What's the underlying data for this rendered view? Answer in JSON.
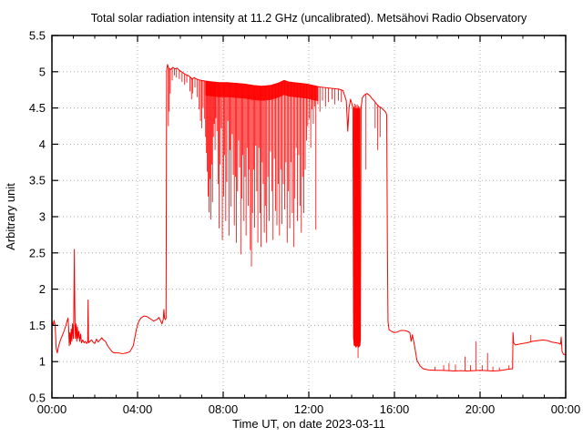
{
  "chart_data": {
    "type": "line",
    "title": "Total solar radiation intensity at 11.2 GHz (uncalibrated). Metsähovi Radio Observatory",
    "xlabel": "Time UT, on date 2023-03-11",
    "ylabel": "Arbitrary unit",
    "xlim_hours": [
      0,
      24
    ],
    "ylim": [
      0.5,
      5.5
    ],
    "grid": "dotted at every major tick",
    "legend": "none",
    "series_name": "total solar radiation intensity",
    "series_color": "#ff0000",
    "grid_color": "#a8a8a8",
    "frame_color": "#000000",
    "x_axis": {
      "label": "Time UT, on date 2023-03-11",
      "major_ticks": [
        {
          "t": 0,
          "label": "00:00"
        },
        {
          "t": 4,
          "label": "04:00"
        },
        {
          "t": 8,
          "label": "08:00"
        },
        {
          "t": 12,
          "label": "12:00"
        },
        {
          "t": 16,
          "label": "16:00"
        },
        {
          "t": 20,
          "label": "20:00"
        },
        {
          "t": 24,
          "label": "00:00"
        }
      ],
      "minor_step_hours": 1
    },
    "y_axis": {
      "label": "Arbitrary unit",
      "min": 0.5,
      "max": 5.5,
      "major_ticks": [
        {
          "v": 0.5,
          "label": "0.5"
        },
        {
          "v": 1.0,
          "label": "1"
        },
        {
          "v": 1.5,
          "label": "1.5"
        },
        {
          "v": 2.0,
          "label": "2"
        },
        {
          "v": 2.5,
          "label": "2.5"
        },
        {
          "v": 3.0,
          "label": "3"
        },
        {
          "v": 3.5,
          "label": "3.5"
        },
        {
          "v": 4.0,
          "label": "4"
        },
        {
          "v": 4.5,
          "label": "4.5"
        },
        {
          "v": 5.0,
          "label": "5"
        },
        {
          "v": 5.5,
          "label": "5.5"
        }
      ]
    },
    "baseline_points": [
      [
        0,
        1.56
      ],
      [
        0.06,
        1.5
      ],
      [
        0.1,
        1.57
      ],
      [
        0.15,
        1.5
      ],
      [
        0.2,
        1.18
      ],
      [
        0.25,
        1.12
      ],
      [
        0.3,
        1.2
      ],
      [
        0.4,
        1.3
      ],
      [
        0.5,
        1.37
      ],
      [
        0.6,
        1.45
      ],
      [
        0.7,
        1.55
      ],
      [
        0.75,
        1.6
      ],
      [
        0.78,
        1.48
      ],
      [
        0.81,
        1.22
      ],
      [
        0.84,
        1.4
      ],
      [
        0.87,
        1.24
      ],
      [
        0.9,
        1.45
      ],
      [
        0.93,
        1.28
      ],
      [
        0.96,
        1.52
      ],
      [
        1.0,
        1.32
      ],
      [
        1.02,
        1.6
      ],
      [
        1.04,
        2.2
      ],
      [
        1.05,
        2.55
      ],
      [
        1.06,
        2.1
      ],
      [
        1.08,
        1.5
      ],
      [
        1.1,
        1.32
      ],
      [
        1.13,
        1.52
      ],
      [
        1.16,
        1.28
      ],
      [
        1.19,
        1.48
      ],
      [
        1.22,
        1.32
      ],
      [
        1.26,
        1.42
      ],
      [
        1.3,
        1.28
      ],
      [
        1.34,
        1.38
      ],
      [
        1.38,
        1.26
      ],
      [
        1.44,
        1.3
      ],
      [
        1.5,
        1.26
      ],
      [
        1.56,
        1.28
      ],
      [
        1.62,
        1.25
      ],
      [
        1.67,
        1.27
      ],
      [
        1.69,
        1.85
      ],
      [
        1.71,
        1.26
      ],
      [
        1.78,
        1.28
      ],
      [
        1.85,
        1.3
      ],
      [
        1.92,
        1.27
      ],
      [
        2.0,
        1.25
      ],
      [
        2.08,
        1.31
      ],
      [
        2.16,
        1.27
      ],
      [
        2.25,
        1.3
      ],
      [
        2.33,
        1.33
      ],
      [
        2.4,
        1.3
      ],
      [
        2.5,
        1.28
      ],
      [
        2.6,
        1.22
      ],
      [
        2.7,
        1.18
      ],
      [
        2.8,
        1.14
      ],
      [
        2.9,
        1.12
      ],
      [
        3.1,
        1.12
      ],
      [
        3.3,
        1.11
      ],
      [
        3.5,
        1.12
      ],
      [
        3.65,
        1.14
      ],
      [
        3.8,
        1.22
      ],
      [
        3.95,
        1.45
      ],
      [
        4.05,
        1.55
      ],
      [
        4.15,
        1.6
      ],
      [
        4.3,
        1.63
      ],
      [
        4.45,
        1.62
      ],
      [
        4.6,
        1.59
      ],
      [
        4.75,
        1.56
      ],
      [
        4.9,
        1.58
      ],
      [
        5.0,
        1.61
      ],
      [
        5.08,
        1.56
      ],
      [
        5.14,
        1.52
      ],
      [
        5.2,
        1.58
      ],
      [
        5.23,
        1.72
      ],
      [
        5.26,
        1.6
      ],
      [
        5.3,
        1.58
      ],
      [
        5.33,
        1.6
      ],
      [
        5.36,
        5.02
      ],
      [
        5.4,
        5.1
      ],
      [
        5.45,
        5.05
      ],
      [
        5.55,
        5.03
      ],
      [
        5.65,
        5.06
      ],
      [
        5.75,
        5.04
      ],
      [
        5.85,
        5.05
      ],
      [
        5.95,
        5.02
      ],
      [
        6.05,
        5.0
      ],
      [
        6.15,
        4.98
      ],
      [
        6.25,
        4.96
      ],
      [
        6.35,
        4.95
      ],
      [
        6.45,
        4.93
      ],
      [
        6.55,
        4.9
      ],
      [
        6.65,
        4.92
      ],
      [
        6.75,
        4.9
      ],
      [
        6.85,
        4.89
      ],
      [
        7.0,
        4.88
      ],
      [
        7.2,
        4.87
      ],
      [
        7.5,
        4.86
      ],
      [
        7.8,
        4.85
      ],
      [
        8.2,
        4.85
      ],
      [
        8.6,
        4.84
      ],
      [
        9.0,
        4.83
      ],
      [
        9.4,
        4.81
      ],
      [
        9.8,
        4.8
      ],
      [
        10.2,
        4.81
      ],
      [
        10.55,
        4.84
      ],
      [
        10.85,
        4.88
      ],
      [
        11.05,
        4.86
      ],
      [
        11.3,
        4.85
      ],
      [
        11.6,
        4.84
      ],
      [
        11.9,
        4.83
      ],
      [
        12.2,
        4.81
      ],
      [
        12.5,
        4.79
      ],
      [
        12.8,
        4.78
      ],
      [
        13.1,
        4.77
      ],
      [
        13.4,
        4.76
      ],
      [
        13.6,
        4.74
      ],
      [
        13.75,
        4.6
      ],
      [
        13.82,
        4.18
      ],
      [
        13.88,
        4.5
      ],
      [
        13.95,
        4.62
      ],
      [
        14.02,
        4.55
      ],
      [
        14.06,
        4.5
      ],
      [
        14.09,
        1.32
      ],
      [
        14.14,
        1.24
      ],
      [
        14.2,
        1.2
      ],
      [
        14.26,
        1.23
      ],
      [
        14.32,
        1.2
      ],
      [
        14.38,
        1.22
      ],
      [
        14.41,
        1.3
      ],
      [
        14.44,
        4.5
      ],
      [
        14.5,
        4.64
      ],
      [
        14.6,
        4.68
      ],
      [
        14.72,
        4.7
      ],
      [
        14.85,
        4.67
      ],
      [
        14.95,
        4.63
      ],
      [
        15.05,
        4.6
      ],
      [
        15.15,
        4.56
      ],
      [
        15.28,
        4.52
      ],
      [
        15.4,
        4.5
      ],
      [
        15.5,
        4.47
      ],
      [
        15.6,
        4.44
      ],
      [
        15.64,
        4.4
      ],
      [
        15.67,
        2.6
      ],
      [
        15.7,
        1.55
      ],
      [
        15.75,
        1.44
      ],
      [
        15.85,
        1.42
      ],
      [
        16.0,
        1.4
      ],
      [
        16.15,
        1.41
      ],
      [
        16.3,
        1.43
      ],
      [
        16.45,
        1.43
      ],
      [
        16.6,
        1.42
      ],
      [
        16.72,
        1.4
      ],
      [
        16.78,
        1.28
      ],
      [
        16.84,
        1.37
      ],
      [
        16.95,
        1.2
      ],
      [
        17.05,
        1.02
      ],
      [
        17.2,
        0.94
      ],
      [
        17.35,
        0.9
      ],
      [
        17.6,
        0.885
      ],
      [
        17.9,
        0.88
      ],
      [
        18.2,
        0.88
      ],
      [
        18.5,
        0.875
      ],
      [
        18.8,
        0.87
      ],
      [
        19.1,
        0.875
      ],
      [
        19.4,
        0.87
      ],
      [
        19.7,
        0.875
      ],
      [
        20.0,
        0.88
      ],
      [
        20.3,
        0.875
      ],
      [
        20.6,
        0.87
      ],
      [
        20.9,
        0.875
      ],
      [
        21.2,
        0.89
      ],
      [
        21.45,
        0.9
      ],
      [
        21.52,
        0.9
      ],
      [
        21.54,
        1.4
      ],
      [
        21.57,
        1.26
      ],
      [
        21.65,
        1.23
      ],
      [
        21.8,
        1.24
      ],
      [
        22.0,
        1.25
      ],
      [
        22.2,
        1.26
      ],
      [
        22.45,
        1.28
      ],
      [
        22.7,
        1.29
      ],
      [
        22.95,
        1.3
      ],
      [
        23.15,
        1.29
      ],
      [
        23.35,
        1.27
      ],
      [
        23.55,
        1.26
      ],
      [
        23.7,
        1.25
      ],
      [
        23.76,
        1.24
      ],
      [
        23.79,
        1.34
      ],
      [
        23.83,
        1.14
      ],
      [
        23.9,
        1.1
      ],
      [
        24.0,
        1.1
      ]
    ],
    "down_spikes": [
      [
        5.44,
        4.25
      ],
      [
        5.48,
        4.45
      ],
      [
        5.53,
        4.7
      ],
      [
        5.62,
        4.88
      ],
      [
        5.72,
        4.95
      ],
      [
        5.82,
        4.92
      ],
      [
        5.95,
        4.9
      ],
      [
        6.08,
        4.86
      ],
      [
        6.2,
        4.82
      ],
      [
        6.3,
        4.85
      ],
      [
        6.45,
        4.73
      ],
      [
        6.52,
        4.62
      ],
      [
        6.58,
        4.7
      ],
      [
        6.68,
        4.78
      ],
      [
        6.78,
        4.65
      ],
      [
        6.88,
        4.48
      ],
      [
        6.94,
        4.32
      ],
      [
        7.0,
        4.22
      ],
      [
        7.06,
        4.5
      ],
      [
        7.12,
        4.35
      ],
      [
        7.18,
        4.1
      ],
      [
        7.22,
        3.88
      ],
      [
        7.26,
        3.62
      ],
      [
        7.3,
        3.28
      ],
      [
        7.34,
        3.06
      ],
      [
        7.38,
        3.52
      ],
      [
        7.42,
        2.96
      ],
      [
        7.46,
        3.72
      ],
      [
        7.5,
        3.2
      ],
      [
        7.54,
        4.1
      ],
      [
        7.58,
        4.28
      ],
      [
        7.62,
        3.92
      ],
      [
        7.66,
        4.36
      ],
      [
        7.71,
        4.18
      ],
      [
        7.76,
        3.45
      ],
      [
        7.81,
        2.84
      ],
      [
        7.86,
        3.72
      ],
      [
        7.91,
        4.22
      ],
      [
        7.96,
        2.68
      ],
      [
        8.02,
        3.28
      ],
      [
        8.07,
        3.85
      ],
      [
        8.12,
        2.94
      ],
      [
        8.17,
        3.48
      ],
      [
        8.22,
        4.32
      ],
      [
        8.27,
        2.74
      ],
      [
        8.32,
        3.92
      ],
      [
        8.37,
        3.14
      ],
      [
        8.42,
        4.14
      ],
      [
        8.47,
        3.58
      ],
      [
        8.52,
        2.88
      ],
      [
        8.57,
        3.55
      ],
      [
        8.62,
        2.64
      ],
      [
        8.67,
        3.35
      ],
      [
        8.72,
        4.05
      ],
      [
        8.77,
        3.68
      ],
      [
        8.82,
        2.48
      ],
      [
        8.87,
        3.25
      ],
      [
        8.92,
        3.85
      ],
      [
        8.97,
        2.94
      ],
      [
        9.02,
        3.55
      ],
      [
        9.07,
        2.74
      ],
      [
        9.12,
        3.95
      ],
      [
        9.17,
        3.15
      ],
      [
        9.22,
        3.65
      ],
      [
        9.27,
        2.54
      ],
      [
        9.32,
        2.31
      ],
      [
        9.37,
        3.05
      ],
      [
        9.42,
        3.65
      ],
      [
        9.47,
        2.85
      ],
      [
        9.52,
        3.98
      ],
      [
        9.57,
        3.35
      ],
      [
        9.62,
        2.64
      ],
      [
        9.67,
        3.95
      ],
      [
        9.72,
        3.05
      ],
      [
        9.77,
        2.58
      ],
      [
        9.82,
        3.75
      ],
      [
        9.87,
        3.45
      ],
      [
        9.92,
        2.78
      ],
      [
        9.97,
        3.15
      ],
      [
        10.03,
        2.64
      ],
      [
        10.09,
        3.55
      ],
      [
        10.15,
        2.94
      ],
      [
        10.21,
        3.9
      ],
      [
        10.27,
        3.35
      ],
      [
        10.33,
        2.68
      ],
      [
        10.39,
        3.8
      ],
      [
        10.45,
        3.08
      ],
      [
        10.51,
        2.88
      ],
      [
        10.57,
        3.45
      ],
      [
        10.63,
        2.74
      ],
      [
        10.69,
        3.65
      ],
      [
        10.75,
        2.9
      ],
      [
        10.81,
        3.45
      ],
      [
        10.87,
        3.1
      ],
      [
        10.93,
        3.75
      ],
      [
        10.99,
        2.64
      ],
      [
        11.05,
        3.35
      ],
      [
        11.11,
        2.84
      ],
      [
        11.17,
        3.75
      ],
      [
        11.23,
        3.05
      ],
      [
        11.29,
        2.58
      ],
      [
        11.35,
        3.25
      ],
      [
        11.41,
        3.95
      ],
      [
        11.47,
        2.94
      ],
      [
        11.53,
        3.85
      ],
      [
        11.59,
        3.15
      ],
      [
        11.65,
        2.78
      ],
      [
        11.71,
        3.55
      ],
      [
        11.77,
        3.05
      ],
      [
        11.83,
        3.65
      ],
      [
        11.89,
        4.05
      ],
      [
        11.95,
        4.25
      ],
      [
        12.03,
        4.35
      ],
      [
        12.09,
        3.95
      ],
      [
        12.15,
        4.48
      ],
      [
        12.21,
        4.28
      ],
      [
        12.27,
        4.52
      ],
      [
        12.33,
        2.82
      ],
      [
        12.42,
        4.55
      ],
      [
        12.52,
        4.45
      ],
      [
        12.64,
        4.6
      ],
      [
        12.78,
        4.52
      ],
      [
        12.92,
        4.58
      ],
      [
        13.08,
        4.62
      ],
      [
        13.22,
        4.55
      ],
      [
        13.38,
        4.6
      ],
      [
        13.52,
        4.58
      ],
      [
        14.3,
        1.05
      ],
      [
        14.67,
        3.65
      ],
      [
        15.1,
        4.22
      ],
      [
        15.22,
        3.92
      ],
      [
        15.33,
        4.1
      ]
    ],
    "up_spikes": [
      [
        14.11,
        4.52
      ],
      [
        14.14,
        4.56
      ],
      [
        14.17,
        4.5
      ],
      [
        14.2,
        4.54
      ],
      [
        14.23,
        4.48
      ],
      [
        14.26,
        4.55
      ],
      [
        14.29,
        4.5
      ],
      [
        14.32,
        4.53
      ],
      [
        14.35,
        4.47
      ],
      [
        14.38,
        4.52
      ],
      [
        17.9,
        0.93
      ],
      [
        18.3,
        0.95
      ],
      [
        18.55,
        0.98
      ],
      [
        18.85,
        0.96
      ],
      [
        19.3,
        1.07
      ],
      [
        19.55,
        0.95
      ],
      [
        19.8,
        1.28
      ],
      [
        20.1,
        0.95
      ],
      [
        20.35,
        1.12
      ],
      [
        20.6,
        0.93
      ],
      [
        20.9,
        0.92
      ],
      [
        21.35,
        0.95
      ],
      [
        22.37,
        1.37
      ]
    ],
    "solid_regions": [
      {
        "t0": 7.16,
        "t1": 12.44,
        "mode": "under_baseline",
        "thickness": 0.2
      },
      {
        "t0": 14.09,
        "t1": 14.41,
        "mode": "absolute",
        "v_top": 4.5,
        "v_bottom": 1.22
      }
    ]
  }
}
